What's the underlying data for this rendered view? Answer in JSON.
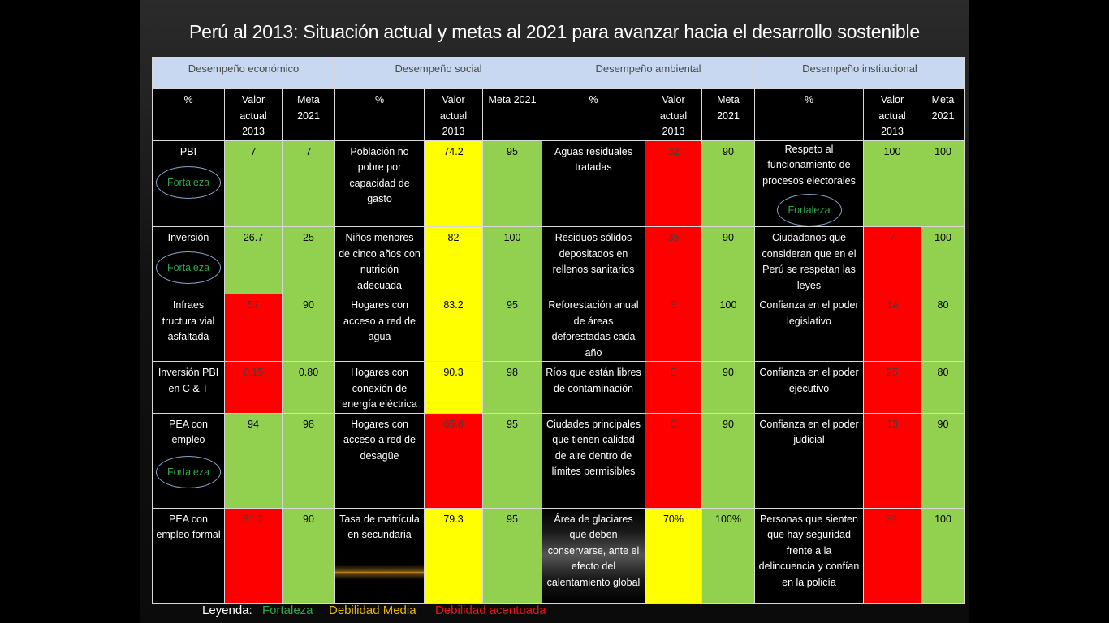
{
  "title": "Perú al 2013: Situación actual y metas al 2021 para avanzar hacia el desarrollo sostenible",
  "sections": [
    "Desempeño económico",
    "Desempeño social",
    "Desempeño ambiental",
    "Desempeño institucional"
  ],
  "headers": {
    "pct": "%",
    "valor": "Valor actual 2013",
    "meta": "Meta 2021"
  },
  "rows": [
    {
      "eco": {
        "label": "PBI",
        "badge": "Fortaleza",
        "valor": "7",
        "meta": "7"
      },
      "soc": {
        "label": "Población no pobre por capacidad de gasto",
        "valor": "74.2",
        "meta": "95"
      },
      "amb": {
        "label": "Aguas residuales tratadas",
        "valor": "32",
        "meta": "90"
      },
      "ins": {
        "label": "Respeto al funcionamiento de procesos electorales",
        "badge": "Fortaleza",
        "valor": "100",
        "meta": "100"
      }
    },
    {
      "eco": {
        "label": "Inversión",
        "badge": "Fortaleza",
        "valor": "26.7",
        "meta": "25"
      },
      "soc": {
        "label": "Niños menores de cinco años con nutrición adecuada",
        "valor": "82",
        "meta": "100"
      },
      "amb": {
        "label": "Residuos sólidos depositados en rellenos sanitarios",
        "valor": "35",
        "meta": "90"
      },
      "ins": {
        "label": "Ciudadanos que consideran que en el Perú se respetan las leyes",
        "valor": "7",
        "meta": "100"
      }
    },
    {
      "eco": {
        "label": "Infraes tructura vial asfaltada",
        "valor": "57",
        "meta": "90"
      },
      "soc": {
        "label": "Hogares con acceso a red de agua",
        "valor": "83.2",
        "meta": "95"
      },
      "amb": {
        "label": "Reforestación anual de áreas deforestadas cada año",
        "valor": "3",
        "meta": "100"
      },
      "ins": {
        "label": "Confianza en el poder legislativo",
        "valor": "14",
        "meta": "80"
      }
    },
    {
      "eco": {
        "label": "Inversión PBI en C & T",
        "valor": "0.15",
        "meta": "0.80"
      },
      "soc": {
        "label": "Hogares con conexión de energía eléctrica",
        "valor": "90.3",
        "meta": "98"
      },
      "amb": {
        "label": "Ríos que están libres de contaminación",
        "valor": "0",
        "meta": "90"
      },
      "ins": {
        "label": "Confianza en el poder ejecutivo",
        "valor": "25",
        "meta": "80"
      }
    },
    {
      "eco": {
        "label": "PEA con empleo",
        "badge": "Fortaleza",
        "valor": "94",
        "meta": "98"
      },
      "soc": {
        "label": "Hogares con acceso a red de desagüe",
        "valor": "65.8",
        "meta": "95"
      },
      "amb": {
        "label": "Ciudades principales que tienen calidad de aire dentro de límites permisibles",
        "valor": "0",
        "meta": "90"
      },
      "ins": {
        "label": "Confianza en el poder judicial",
        "valor": "13",
        "meta": "90"
      }
    },
    {
      "eco": {
        "label": "PEA con empleo formal",
        "valor": "31.2",
        "meta": "90"
      },
      "soc": {
        "label": "Tasa de matrícula en secundaria",
        "valor": "79.3",
        "meta": "95"
      },
      "amb": {
        "label": "Área de glaciares que deben conservarse, ante el efecto del calentamiento global",
        "valor": "70%",
        "meta": "100%"
      },
      "ins": {
        "label": "Personas que sienten que hay seguridad frente a la delincuencia y confían en la policía",
        "valor": "31",
        "meta": "100"
      }
    }
  ],
  "legend": {
    "label": "Leyenda:",
    "fortaleza": "Fortaleza",
    "media": "Debilidad Media",
    "acentuada": "Debilidad acentuada"
  },
  "colors": {
    "fortaleza": "#92d050",
    "debilidad_media": "#ffff00",
    "debilidad_acentuada": "#ff0000",
    "section_header": "#c8d8f0"
  }
}
